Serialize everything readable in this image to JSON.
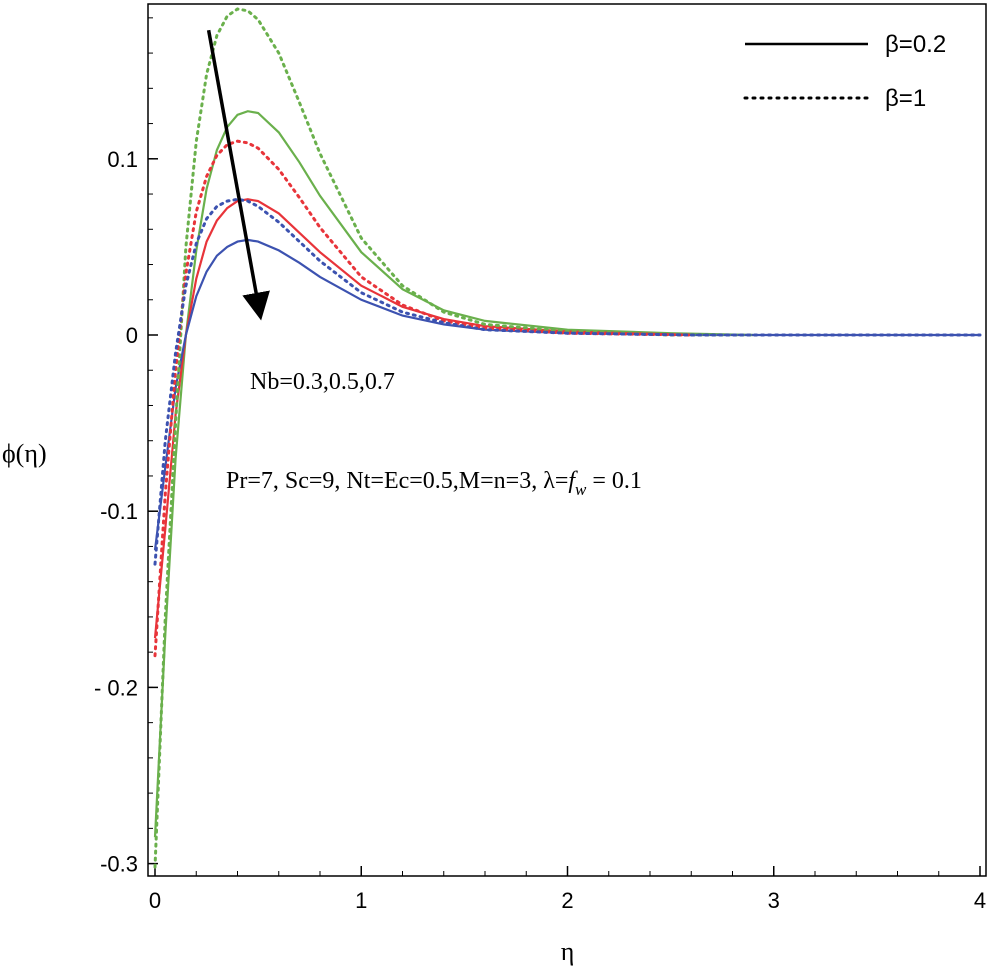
{
  "chart_data": {
    "type": "line",
    "xlabel": "η",
    "ylabel": "ϕ(η)",
    "xlim": [
      0,
      4
    ],
    "ylim": [
      -0.3,
      0.18
    ],
    "xticks": [
      0,
      1,
      2,
      3,
      4
    ],
    "xtick_labels": [
      "0",
      "1",
      "2",
      "3",
      "4"
    ],
    "yticks": [
      -0.3,
      -0.2,
      -0.1,
      0,
      0.1
    ],
    "ytick_labels": [
      "-0.3",
      "- 0.2",
      "-0.1",
      "0",
      "0.1"
    ],
    "grid": false,
    "legend_position": "top-right",
    "legend": [
      {
        "label": "β=0.2",
        "style": "solid"
      },
      {
        "label": "β=1",
        "style": "dotted"
      }
    ],
    "annotations": [
      {
        "text": "Nb=0.3,0.5,0.7",
        "kind": "arrow-label"
      },
      {
        "text": "Pr=7, Sc=9, Nt=Ec=0.5,M=n=3, λ=",
        "f": "f",
        "sub": "w",
        "tail": " = 0.1",
        "kind": "parameters"
      }
    ],
    "arrow": {
      "from": [
        0.26,
        0.173
      ],
      "to": [
        0.52,
        0.005
      ]
    },
    "colors": {
      "Nb=0.3": "#6ab04c",
      "Nb=0.5": "#e8343a",
      "Nb=0.7": "#3c52b0"
    },
    "series": [
      {
        "beta": 0.2,
        "style": "solid",
        "color": "#6ab04c",
        "x": [
          0,
          0.05,
          0.1,
          0.15,
          0.2,
          0.25,
          0.3,
          0.35,
          0.4,
          0.45,
          0.5,
          0.6,
          0.7,
          0.8,
          1.0,
          1.2,
          1.4,
          1.6,
          2.0,
          2.5,
          2.9
        ],
        "y": [
          -0.285,
          -0.17,
          -0.07,
          0.0,
          0.048,
          0.083,
          0.105,
          0.118,
          0.125,
          0.127,
          0.126,
          0.115,
          0.098,
          0.079,
          0.047,
          0.026,
          0.014,
          0.008,
          0.003,
          0.001,
          0.0
        ]
      },
      {
        "beta": 0.2,
        "style": "solid",
        "color": "#e8343a",
        "x": [
          0,
          0.05,
          0.1,
          0.15,
          0.2,
          0.25,
          0.3,
          0.35,
          0.4,
          0.45,
          0.5,
          0.6,
          0.7,
          0.8,
          1.0,
          1.2,
          1.4,
          1.6,
          2.0,
          2.6
        ],
        "y": [
          -0.172,
          -0.11,
          -0.045,
          0.0,
          0.032,
          0.053,
          0.065,
          0.072,
          0.076,
          0.077,
          0.076,
          0.069,
          0.058,
          0.047,
          0.028,
          0.016,
          0.009,
          0.005,
          0.002,
          0.0
        ]
      },
      {
        "beta": 0.2,
        "style": "solid",
        "color": "#3c52b0",
        "x": [
          0,
          0.05,
          0.1,
          0.15,
          0.2,
          0.25,
          0.3,
          0.35,
          0.4,
          0.45,
          0.5,
          0.6,
          0.7,
          0.8,
          1.0,
          1.2,
          1.4,
          1.6,
          2.0,
          2.6,
          4.0
        ],
        "y": [
          -0.122,
          -0.075,
          -0.03,
          0.0,
          0.022,
          0.036,
          0.045,
          0.05,
          0.053,
          0.054,
          0.053,
          0.048,
          0.041,
          0.033,
          0.02,
          0.011,
          0.006,
          0.003,
          0.001,
          0.0,
          0.0
        ]
      },
      {
        "beta": 1,
        "style": "dotted",
        "color": "#6ab04c",
        "x": [
          0,
          0.05,
          0.1,
          0.15,
          0.2,
          0.25,
          0.3,
          0.35,
          0.4,
          0.45,
          0.5,
          0.6,
          0.7,
          0.8,
          1.0,
          1.2,
          1.4,
          1.6,
          2.0,
          2.5,
          2.9
        ],
        "y": [
          -0.302,
          -0.16,
          -0.05,
          0.05,
          0.11,
          0.148,
          0.17,
          0.181,
          0.185,
          0.184,
          0.179,
          0.16,
          0.132,
          0.103,
          0.055,
          0.028,
          0.013,
          0.006,
          0.002,
          0.0,
          0.0
        ]
      },
      {
        "beta": 1,
        "style": "dotted",
        "color": "#e8343a",
        "x": [
          0,
          0.05,
          0.1,
          0.15,
          0.2,
          0.25,
          0.3,
          0.35,
          0.4,
          0.45,
          0.5,
          0.6,
          0.7,
          0.8,
          1.0,
          1.2,
          1.4,
          1.6,
          2.0,
          2.6
        ],
        "y": [
          -0.182,
          -0.09,
          -0.02,
          0.035,
          0.07,
          0.09,
          0.102,
          0.108,
          0.11,
          0.109,
          0.106,
          0.094,
          0.078,
          0.061,
          0.033,
          0.017,
          0.008,
          0.004,
          0.001,
          0.0
        ]
      },
      {
        "beta": 1,
        "style": "dotted",
        "color": "#3c52b0",
        "x": [
          0,
          0.05,
          0.1,
          0.15,
          0.2,
          0.25,
          0.3,
          0.35,
          0.4,
          0.45,
          0.5,
          0.6,
          0.7,
          0.8,
          1.0,
          1.2,
          1.4,
          1.6,
          2.0,
          2.6,
          4.0
        ],
        "y": [
          -0.13,
          -0.06,
          -0.01,
          0.028,
          0.052,
          0.066,
          0.073,
          0.076,
          0.077,
          0.076,
          0.073,
          0.064,
          0.053,
          0.042,
          0.024,
          0.013,
          0.007,
          0.003,
          0.001,
          0.0,
          0.0
        ]
      }
    ]
  }
}
